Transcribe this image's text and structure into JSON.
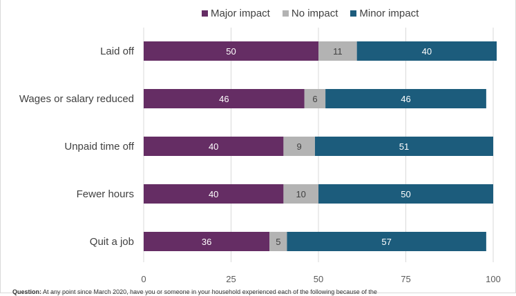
{
  "chart_data": {
    "type": "bar",
    "orientation": "horizontal",
    "stacked": true,
    "categories": [
      "Laid off",
      "Wages or salary reduced",
      "Unpaid time off",
      "Fewer hours",
      "Quit a job"
    ],
    "series": [
      {
        "name": "Major impact",
        "color": "#652d64",
        "values": [
          50,
          46,
          40,
          40,
          36
        ]
      },
      {
        "name": "No impact",
        "color": "#b3b3b3",
        "values": [
          11,
          6,
          9,
          10,
          5
        ]
      },
      {
        "name": "Minor impact",
        "color": "#1c5c7c",
        "values": [
          40,
          46,
          51,
          50,
          57
        ]
      }
    ],
    "xlim": [
      0,
      100
    ],
    "xticks": [
      0,
      25,
      50,
      75,
      100
    ],
    "grid": "vertical",
    "legend": "top-center"
  },
  "footnote": {
    "label": "Question:",
    "text": "At any point since March 2020, have you or someone in your household experienced each of the following because of the"
  }
}
